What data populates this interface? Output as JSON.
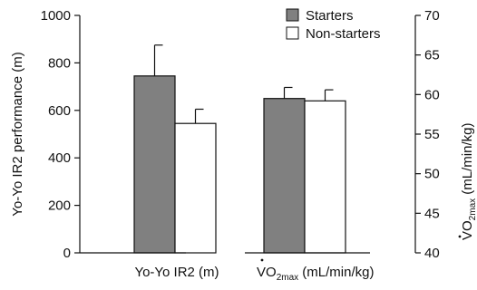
{
  "chart_data": {
    "type": "bar",
    "categories": [
      {
        "id": "yoyo",
        "label": "Yo-Yo IR2 (m)",
        "axis": "left"
      },
      {
        "id": "vo2",
        "label_main": "VO",
        "label_sub": "2max",
        "label_rest": " (mL/min/kg)",
        "axis": "right"
      }
    ],
    "series": [
      {
        "name": "Starters",
        "color": "#808080",
        "values": [
          745,
          59.5
        ],
        "errors": [
          130,
          1.4
        ]
      },
      {
        "name": "Non-starters",
        "color": "#ffffff",
        "values": [
          545,
          59.2
        ],
        "errors": [
          60,
          1.4
        ]
      }
    ],
    "y_left": {
      "label": "Yo-Yo IR2 performance (m)",
      "ylim": [
        0,
        1000
      ],
      "ticks": [
        "0",
        "200",
        "400",
        "600",
        "800",
        "1000"
      ]
    },
    "y_right": {
      "label_main": "VO",
      "label_sub": "2max",
      "label_rest": " (mL/min/kg)",
      "ylim": [
        40,
        70
      ],
      "ticks": [
        "40",
        "45",
        "50",
        "55",
        "60",
        "65",
        "70"
      ]
    },
    "legend_position": "top-right",
    "grid": false
  }
}
